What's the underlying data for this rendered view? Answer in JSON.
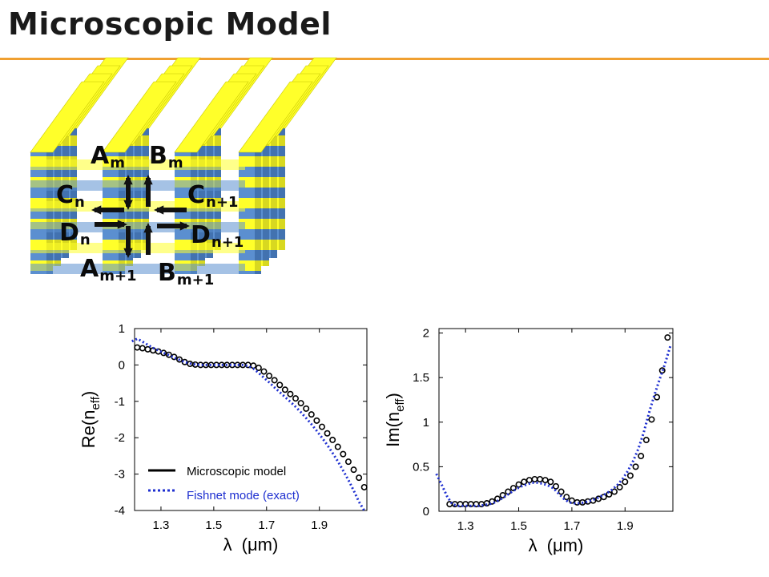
{
  "slide": {
    "title": "Microscopic Model",
    "accent_color": "#f0a030"
  },
  "diagram": {
    "name": "fishnet-structure",
    "colors": {
      "yellow": "#ffff2a",
      "blue": "#5b8fd0",
      "dark": "#111111"
    },
    "labels": [
      {
        "id": "Am",
        "main": "A",
        "sub": "m"
      },
      {
        "id": "Bm",
        "main": "B",
        "sub": "m"
      },
      {
        "id": "Cn",
        "main": "C",
        "sub": "n"
      },
      {
        "id": "Cn1",
        "main": "C",
        "sub": "n+1"
      },
      {
        "id": "Dn",
        "main": "D",
        "sub": "n"
      },
      {
        "id": "Dn1",
        "main": "D",
        "sub": "n+1"
      },
      {
        "id": "Am1",
        "main": "A",
        "sub": "m+1"
      },
      {
        "id": "Bm1",
        "main": "B",
        "sub": "m+1"
      }
    ]
  },
  "chart_data": [
    {
      "type": "line",
      "xlabel": "λ (μm)",
      "ylabel": "Re(n_eff)",
      "ylabel_main": "Re(n",
      "ylabel_sub": "eff",
      "ylabel_end": ")",
      "xlabel_main": "λ",
      "xlabel_unit": "(μm)",
      "xlim": [
        1.2,
        2.08
      ],
      "ylim": [
        -4,
        1
      ],
      "xticks": [
        "1.3",
        "1.5",
        "1.7",
        "1.9"
      ],
      "xtick_values": [
        1.3,
        1.5,
        1.7,
        1.9
      ],
      "yticks": [
        "1",
        "0",
        "-1",
        "-2",
        "-3",
        "-4"
      ],
      "ytick_values": [
        1,
        0,
        -1,
        -2,
        -3,
        -4
      ],
      "grid": false,
      "legend": {
        "placement": "bottom-right",
        "entries": [
          "Microscopic model",
          "Fishnet mode (exact)"
        ]
      },
      "series": [
        {
          "name": "Microscopic model",
          "style": "circle-markers",
          "color": "#000000",
          "x": [
            1.21,
            1.23,
            1.25,
            1.27,
            1.29,
            1.31,
            1.33,
            1.35,
            1.37,
            1.39,
            1.41,
            1.43,
            1.45,
            1.47,
            1.49,
            1.51,
            1.53,
            1.55,
            1.57,
            1.59,
            1.61,
            1.63,
            1.65,
            1.67,
            1.69,
            1.71,
            1.73,
            1.75,
            1.77,
            1.79,
            1.81,
            1.83,
            1.85,
            1.87,
            1.89,
            1.91,
            1.93,
            1.95,
            1.97,
            1.99,
            2.01,
            2.03,
            2.05,
            2.07
          ],
          "y": [
            0.48,
            0.46,
            0.43,
            0.4,
            0.37,
            0.33,
            0.28,
            0.22,
            0.15,
            0.08,
            0.03,
            0.01,
            0.0,
            0.0,
            0.0,
            0.0,
            0.0,
            0.0,
            0.0,
            0.0,
            0.0,
            0.0,
            -0.02,
            -0.08,
            -0.18,
            -0.3,
            -0.42,
            -0.55,
            -0.68,
            -0.8,
            -0.92,
            -1.05,
            -1.2,
            -1.36,
            -1.53,
            -1.7,
            -1.88,
            -2.06,
            -2.25,
            -2.45,
            -2.66,
            -2.88,
            -3.1,
            -3.36
          ]
        },
        {
          "name": "Fishnet mode (exact)",
          "style": "dotted-line",
          "color": "#1e2fd0",
          "x": [
            1.19,
            1.21,
            1.23,
            1.25,
            1.27,
            1.29,
            1.31,
            1.33,
            1.35,
            1.37,
            1.39,
            1.41,
            1.43,
            1.45,
            1.47,
            1.49,
            1.51,
            1.53,
            1.55,
            1.57,
            1.59,
            1.61,
            1.63,
            1.65,
            1.67,
            1.69,
            1.71,
            1.73,
            1.75,
            1.77,
            1.79,
            1.81,
            1.83,
            1.85,
            1.87,
            1.89,
            1.91,
            1.93,
            1.95,
            1.97,
            1.99,
            2.01,
            2.03,
            2.05,
            2.07
          ],
          "y": [
            0.65,
            0.72,
            0.64,
            0.55,
            0.47,
            0.4,
            0.33,
            0.27,
            0.2,
            0.14,
            0.08,
            0.04,
            0.01,
            0.0,
            0.0,
            0.0,
            0.0,
            0.0,
            0.0,
            0.0,
            0.0,
            0.0,
            -0.03,
            -0.1,
            -0.22,
            -0.35,
            -0.48,
            -0.62,
            -0.75,
            -0.88,
            -1.01,
            -1.15,
            -1.3,
            -1.46,
            -1.63,
            -1.81,
            -2.0,
            -2.2,
            -2.42,
            -2.65,
            -2.9,
            -3.16,
            -3.45,
            -3.76,
            -4.0
          ]
        }
      ]
    },
    {
      "type": "line",
      "xlabel": "λ (μm)",
      "ylabel": "Im(n_eff)",
      "ylabel_main": "Im(n",
      "ylabel_sub": "eff",
      "ylabel_end": ")",
      "xlabel_main": "λ",
      "xlabel_unit": "(μm)",
      "xlim": [
        1.2,
        2.08
      ],
      "ylim": [
        0,
        2.05
      ],
      "xticks": [
        "1.3",
        "1.5",
        "1.7",
        "1.9"
      ],
      "xtick_values": [
        1.3,
        1.5,
        1.7,
        1.9
      ],
      "yticks": [
        "2",
        "1.5",
        "1",
        "0.5",
        "0"
      ],
      "ytick_values": [
        2,
        1.5,
        1,
        0.5,
        0
      ],
      "grid": false,
      "series": [
        {
          "name": "Microscopic model",
          "style": "circle-markers",
          "color": "#000000",
          "x": [
            1.24,
            1.26,
            1.28,
            1.3,
            1.32,
            1.34,
            1.36,
            1.38,
            1.4,
            1.42,
            1.44,
            1.46,
            1.48,
            1.5,
            1.52,
            1.54,
            1.56,
            1.58,
            1.6,
            1.62,
            1.64,
            1.66,
            1.68,
            1.7,
            1.72,
            1.74,
            1.76,
            1.78,
            1.8,
            1.82,
            1.84,
            1.86,
            1.88,
            1.9,
            1.92,
            1.94,
            1.96,
            1.98,
            2.0,
            2.02,
            2.04,
            2.06
          ],
          "y": [
            0.08,
            0.08,
            0.08,
            0.08,
            0.08,
            0.08,
            0.08,
            0.09,
            0.11,
            0.14,
            0.18,
            0.22,
            0.26,
            0.3,
            0.33,
            0.35,
            0.36,
            0.36,
            0.35,
            0.33,
            0.28,
            0.22,
            0.16,
            0.12,
            0.1,
            0.1,
            0.11,
            0.12,
            0.14,
            0.16,
            0.19,
            0.22,
            0.27,
            0.33,
            0.4,
            0.5,
            0.62,
            0.8,
            1.03,
            1.28,
            1.58,
            1.95
          ]
        },
        {
          "name": "Fishnet mode (exact)",
          "style": "dotted-line",
          "color": "#1e2fd0",
          "x": [
            1.19,
            1.21,
            1.23,
            1.25,
            1.27,
            1.29,
            1.31,
            1.33,
            1.35,
            1.37,
            1.39,
            1.41,
            1.43,
            1.45,
            1.47,
            1.49,
            1.51,
            1.53,
            1.55,
            1.57,
            1.59,
            1.61,
            1.63,
            1.65,
            1.67,
            1.69,
            1.71,
            1.73,
            1.75,
            1.77,
            1.79,
            1.81,
            1.83,
            1.85,
            1.87,
            1.89,
            1.91,
            1.93,
            1.95,
            1.97,
            1.99,
            2.01,
            2.03,
            2.05,
            2.07
          ],
          "y": [
            0.42,
            0.3,
            0.17,
            0.08,
            0.06,
            0.06,
            0.06,
            0.06,
            0.06,
            0.07,
            0.08,
            0.1,
            0.13,
            0.17,
            0.21,
            0.25,
            0.28,
            0.3,
            0.32,
            0.32,
            0.31,
            0.29,
            0.26,
            0.2,
            0.14,
            0.1,
            0.09,
            0.09,
            0.1,
            0.12,
            0.14,
            0.17,
            0.2,
            0.24,
            0.29,
            0.36,
            0.45,
            0.56,
            0.7,
            0.88,
            1.1,
            1.3,
            1.48,
            1.65,
            1.85
          ]
        }
      ]
    }
  ]
}
